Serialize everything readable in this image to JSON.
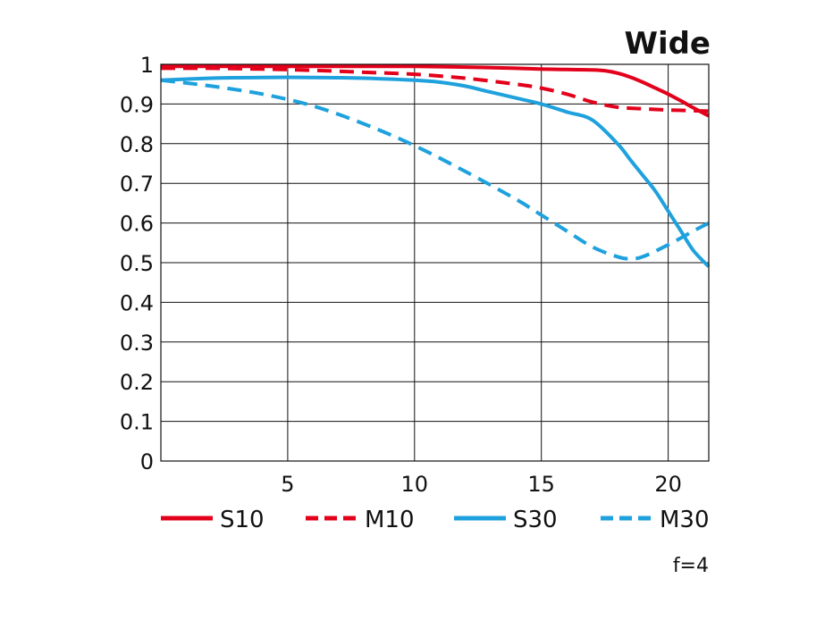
{
  "chart_data": {
    "type": "line",
    "title": "Wide",
    "note": "f=4",
    "xlabel": "",
    "ylabel": "",
    "xlim": [
      0,
      21.6
    ],
    "ylim": [
      0,
      1
    ],
    "x_ticks": [
      5,
      10,
      15,
      20
    ],
    "y_ticks": [
      0,
      0.1,
      0.2,
      0.3,
      0.4,
      0.5,
      0.6,
      0.7,
      0.8,
      0.9,
      1
    ],
    "y_tick_labels": [
      "0",
      "0.1",
      "0.2",
      "0.3",
      "0.4",
      "0.5",
      "0.6",
      "0.7",
      "0.8",
      "0.9",
      "1"
    ],
    "grid": true,
    "legend_position": "bottom",
    "series": [
      {
        "name": "S10",
        "color": "#e3001b",
        "dash": "solid",
        "x": [
          0,
          2,
          4,
          6,
          8,
          10,
          12,
          14,
          15,
          16,
          17,
          17.5,
          18,
          18.5,
          19,
          19.5,
          20,
          20.5,
          21,
          21.6
        ],
        "y": [
          0.995,
          0.995,
          0.995,
          0.995,
          0.995,
          0.995,
          0.993,
          0.99,
          0.988,
          0.987,
          0.986,
          0.984,
          0.978,
          0.968,
          0.955,
          0.94,
          0.925,
          0.908,
          0.89,
          0.87
        ]
      },
      {
        "name": "M10",
        "color": "#e3001b",
        "dash": "dashed",
        "x": [
          0,
          2,
          4,
          6,
          8,
          10,
          12,
          14,
          15,
          16,
          17,
          18,
          19,
          20,
          21,
          21.6
        ],
        "y": [
          0.99,
          0.99,
          0.988,
          0.985,
          0.98,
          0.975,
          0.965,
          0.95,
          0.94,
          0.925,
          0.905,
          0.892,
          0.888,
          0.885,
          0.883,
          0.882
        ]
      },
      {
        "name": "S30",
        "color": "#1ea1dd",
        "dash": "solid",
        "x": [
          0,
          2,
          4,
          6,
          8,
          10,
          11,
          12,
          13,
          14,
          15,
          16,
          17,
          18,
          18.5,
          19,
          19.5,
          20,
          20.5,
          21,
          21.6
        ],
        "y": [
          0.96,
          0.965,
          0.967,
          0.967,
          0.965,
          0.96,
          0.955,
          0.945,
          0.93,
          0.915,
          0.9,
          0.88,
          0.86,
          0.8,
          0.76,
          0.72,
          0.68,
          0.63,
          0.58,
          0.53,
          0.49
        ]
      },
      {
        "name": "M30",
        "color": "#1ea1dd",
        "dash": "dashed",
        "x": [
          0,
          2,
          4,
          6,
          8,
          10,
          12,
          14,
          15,
          16,
          17,
          18,
          18.5,
          19,
          20,
          21,
          21.6
        ],
        "y": [
          0.96,
          0.945,
          0.925,
          0.895,
          0.85,
          0.795,
          0.73,
          0.66,
          0.62,
          0.58,
          0.54,
          0.515,
          0.51,
          0.515,
          0.545,
          0.58,
          0.6
        ]
      }
    ]
  }
}
